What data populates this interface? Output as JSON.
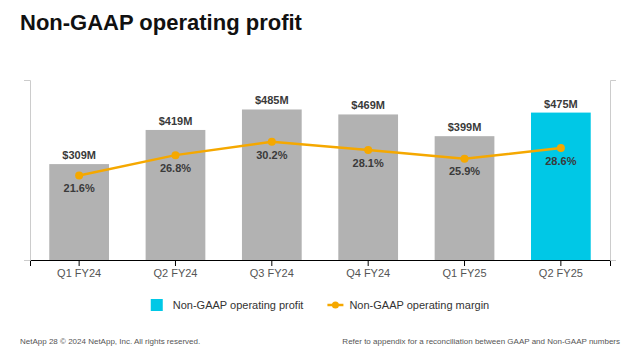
{
  "chart_data": {
    "type": "bar",
    "title": "Non-GAAP operating profit",
    "categories": [
      "Q1 FY24",
      "Q2 FY24",
      "Q3 FY24",
      "Q4 FY24",
      "Q1 FY25",
      "Q2 FY25"
    ],
    "series": [
      {
        "name": "Non-GAAP operating profit",
        "type": "bar",
        "color": "#00c8e6",
        "colors": [
          "#b2b2b2",
          "#b2b2b2",
          "#b2b2b2",
          "#b2b2b2",
          "#b2b2b2",
          "#00c8e6"
        ],
        "values": [
          309,
          419,
          485,
          469,
          399,
          475
        ],
        "value_labels": [
          "$309M",
          "$419M",
          "$485M",
          "$469M",
          "$399M",
          "$475M"
        ]
      },
      {
        "name": "Non-GAAP operating margin",
        "type": "line",
        "color": "#f5a800",
        "marker": "circle",
        "axis": "y2",
        "values": [
          21.6,
          26.8,
          30.2,
          28.1,
          25.9,
          28.6
        ],
        "value_labels": [
          "21.6%",
          "26.8%",
          "30.2%",
          "28.1%",
          "25.9%",
          "28.6%"
        ]
      }
    ],
    "ylim": [
      0,
      580
    ],
    "y2lim": [
      0,
      46
    ],
    "data_labels": true,
    "tick_labels": "x",
    "legend": "bottom",
    "annotations": [
      "NetApp   28   © 2024 NetApp, Inc. All rights reserved.",
      "Refer to appendix for a reconciliation between GAAP and Non-GAAP numbers"
    ]
  }
}
